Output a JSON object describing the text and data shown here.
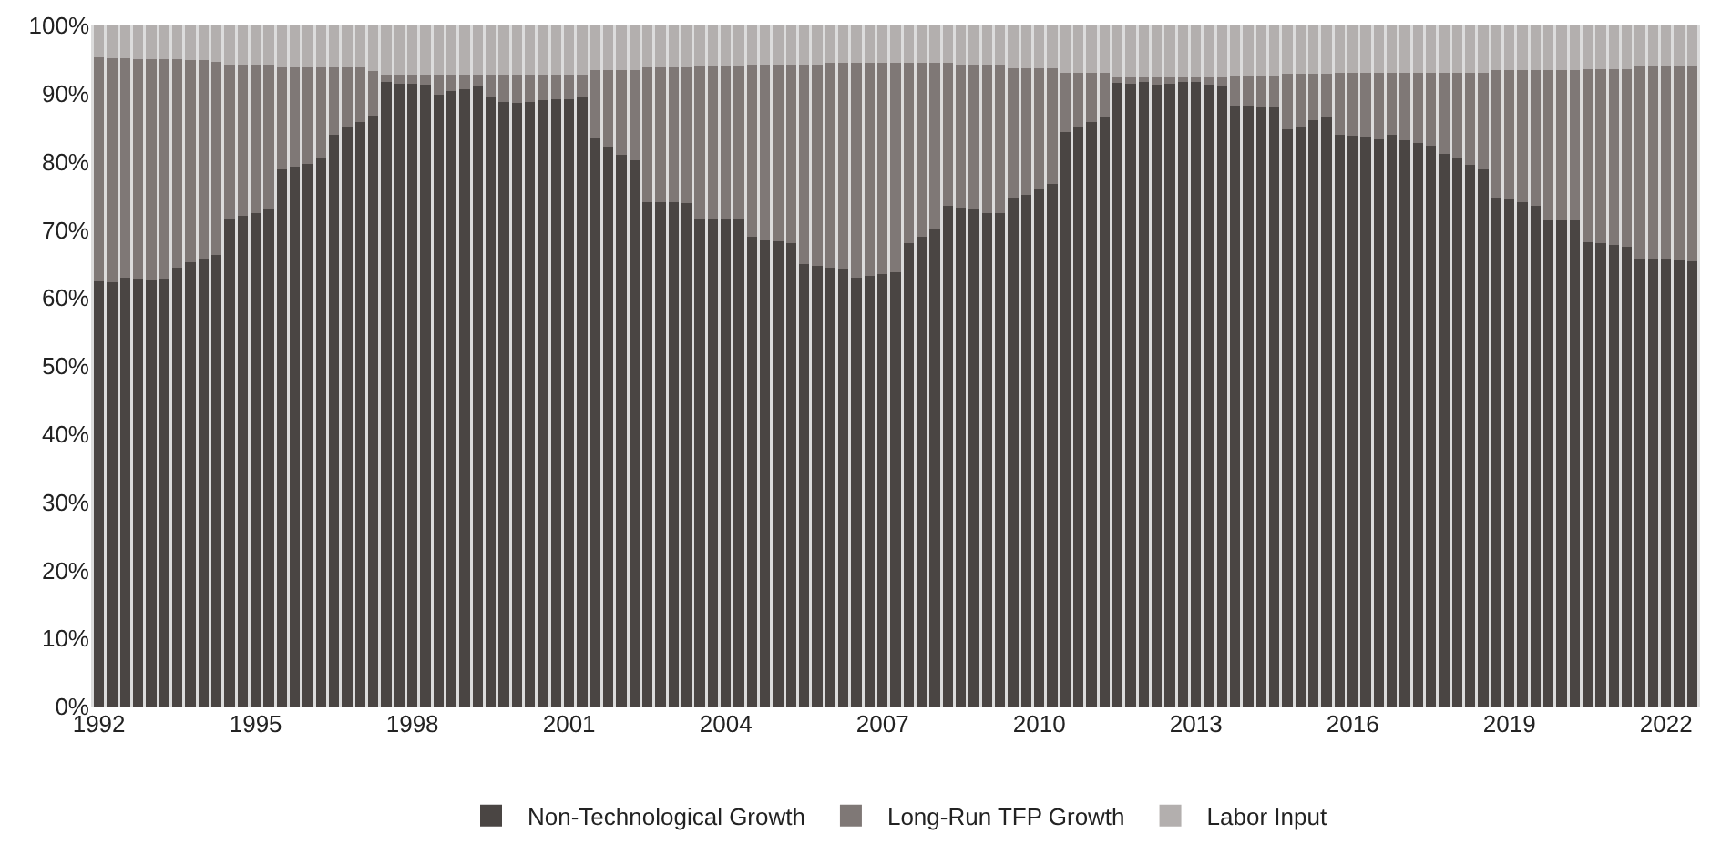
{
  "chart_data": {
    "type": "bar",
    "stacked": true,
    "categories": [
      "1992",
      null,
      null,
      null,
      null,
      null,
      null,
      null,
      null,
      null,
      null,
      null,
      "1995",
      null,
      null,
      null,
      null,
      null,
      null,
      null,
      null,
      null,
      null,
      null,
      "1998",
      null,
      null,
      null,
      null,
      null,
      null,
      null,
      null,
      null,
      null,
      null,
      "2001",
      null,
      null,
      null,
      null,
      null,
      null,
      null,
      null,
      null,
      null,
      null,
      "2004",
      null,
      null,
      null,
      null,
      null,
      null,
      null,
      null,
      null,
      null,
      null,
      "2007",
      null,
      null,
      null,
      null,
      null,
      null,
      null,
      null,
      null,
      null,
      null,
      "2010",
      null,
      null,
      null,
      null,
      null,
      null,
      null,
      null,
      null,
      null,
      null,
      "2013",
      null,
      null,
      null,
      null,
      null,
      null,
      null,
      null,
      null,
      null,
      null,
      "2016",
      null,
      null,
      null,
      null,
      null,
      null,
      null,
      null,
      null,
      null,
      null,
      "2019",
      null,
      null,
      null,
      null,
      null,
      null,
      null,
      null,
      null,
      null,
      null,
      "2022",
      null,
      null
    ],
    "series": [
      {
        "name": "Non-Technological Growth",
        "color": "#4a4543",
        "values": [
          62.5,
          62.3,
          63,
          62.8,
          62.7,
          62.8,
          64.5,
          65.3,
          65.8,
          66.3,
          71.6,
          72,
          72.4,
          73,
          78.9,
          79.3,
          79.7,
          80.5,
          84,
          85,
          85.8,
          86.8,
          91.7,
          91.5,
          91.4,
          91.3,
          89.8,
          90.4,
          90.7,
          91.1,
          89.4,
          88.8,
          88.7,
          88.8,
          89,
          89.2,
          89.2,
          89.6,
          83.4,
          82.2,
          81,
          80.2,
          74.1,
          74,
          74.1,
          73.9,
          71.7,
          71.7,
          71.7,
          71.7,
          69,
          68.5,
          68.3,
          68,
          65,
          64.7,
          64.5,
          64.3,
          63,
          63.3,
          63.5,
          63.8,
          68,
          69,
          70,
          73.5,
          73.3,
          73,
          72.4,
          72.4,
          74.6,
          75.2,
          75.9,
          76.7,
          84.4,
          85,
          85.8,
          86.5,
          91.6,
          91.4,
          91.7,
          91.3,
          91.4,
          91.9,
          91.7,
          91.3,
          91,
          88.3,
          88.3,
          88,
          88.1,
          84.8,
          85,
          86.1,
          86.5,
          83.9,
          83.8,
          83.5,
          83.3,
          83.9,
          83.2,
          82.8,
          82.4,
          81.2,
          80.5,
          79.5,
          78.9,
          74.6,
          74.4,
          74,
          73.5,
          71.4,
          71.4,
          71.4,
          68.2,
          68,
          67.8,
          67.5,
          65.8,
          65.7,
          65.6,
          65.5,
          65.4
        ]
      },
      {
        "name": "Long-Run TFP Growth",
        "color": "#7f7876",
        "values": [
          32.8,
          32.9,
          32.2,
          32.3,
          32.4,
          32.2,
          30.5,
          29.6,
          29.1,
          28.4,
          22.6,
          22.2,
          21.8,
          21.2,
          14.9,
          14.5,
          14.1,
          13.3,
          9.8,
          8.8,
          8,
          6.5,
          1.1,
          1.3,
          1.4,
          1.5,
          3,
          2.4,
          2.1,
          1.7,
          3.4,
          4,
          4.1,
          4,
          3.8,
          3.6,
          3.6,
          3.2,
          10,
          11.2,
          12.4,
          13.2,
          19.8,
          19.9,
          19.8,
          20,
          22.4,
          22.4,
          22.4,
          22.4,
          25.3,
          25.8,
          26,
          26.3,
          29.3,
          29.6,
          30,
          30.2,
          31.5,
          31.2,
          31,
          30.7,
          26.5,
          25.5,
          24.5,
          21,
          21,
          21.3,
          21.9,
          21.9,
          19.1,
          18.5,
          17.8,
          17,
          8.6,
          8,
          7.2,
          6.5,
          0.8,
          1,
          0.7,
          1.1,
          1,
          0.5,
          0.7,
          1.1,
          1.4,
          4.3,
          4.3,
          4.6,
          4.5,
          8.1,
          7.9,
          6.8,
          6.4,
          9.1,
          9.2,
          9.5,
          9.7,
          9.1,
          9.8,
          10.2,
          10.6,
          11.9,
          12.6,
          13.6,
          14.2,
          18.8,
          19,
          19.4,
          19.9,
          22,
          22,
          22,
          25.4,
          25.6,
          25.8,
          26.1,
          28.3,
          28.4,
          28.5,
          28.6,
          28.7
        ]
      },
      {
        "name": "Labor Input",
        "color": "#b3afae",
        "values": [
          4.7,
          4.8,
          4.8,
          4.9,
          4.9,
          5,
          5,
          5.1,
          5.1,
          5.3,
          5.8,
          5.8,
          5.8,
          5.8,
          6.2,
          6.2,
          6.2,
          6.2,
          6.2,
          6.2,
          6.2,
          6.7,
          7.2,
          7.2,
          7.2,
          7.2,
          7.2,
          7.2,
          7.2,
          7.2,
          7.2,
          7.2,
          7.2,
          7.2,
          7.2,
          7.2,
          7.2,
          7.2,
          6.6,
          6.6,
          6.6,
          6.6,
          6.1,
          6.1,
          6.1,
          6.1,
          5.9,
          5.9,
          5.9,
          5.9,
          5.7,
          5.7,
          5.7,
          5.7,
          5.7,
          5.7,
          5.5,
          5.5,
          5.5,
          5.5,
          5.5,
          5.5,
          5.5,
          5.5,
          5.5,
          5.5,
          5.7,
          5.7,
          5.7,
          5.7,
          6.3,
          6.3,
          6.3,
          6.3,
          7,
          7,
          7,
          7,
          7.6,
          7.6,
          7.6,
          7.6,
          7.6,
          7.6,
          7.6,
          7.6,
          7.6,
          7.4,
          7.4,
          7.4,
          7.4,
          7.1,
          7.1,
          7.1,
          7.1,
          7,
          7,
          7,
          7,
          7,
          7,
          7,
          7,
          6.9,
          6.9,
          6.9,
          6.9,
          6.6,
          6.6,
          6.6,
          6.6,
          6.6,
          6.6,
          6.6,
          6.4,
          6.4,
          6.4,
          6.4,
          5.9,
          5.9,
          5.9,
          5.9,
          5.9
        ]
      }
    ],
    "ylim": [
      0,
      100
    ],
    "yticks": [
      {
        "value": 0,
        "label": "0%"
      },
      {
        "value": 10,
        "label": "10%"
      },
      {
        "value": 20,
        "label": "20%"
      },
      {
        "value": 30,
        "label": "30%"
      },
      {
        "value": 40,
        "label": "40%"
      },
      {
        "value": 50,
        "label": "50%"
      },
      {
        "value": 60,
        "label": "60%"
      },
      {
        "value": 70,
        "label": "70%"
      },
      {
        "value": 80,
        "label": "80%"
      },
      {
        "value": 90,
        "label": "90%"
      },
      {
        "value": 100,
        "label": "100%"
      }
    ],
    "grid": false,
    "legend": "bottom"
  }
}
